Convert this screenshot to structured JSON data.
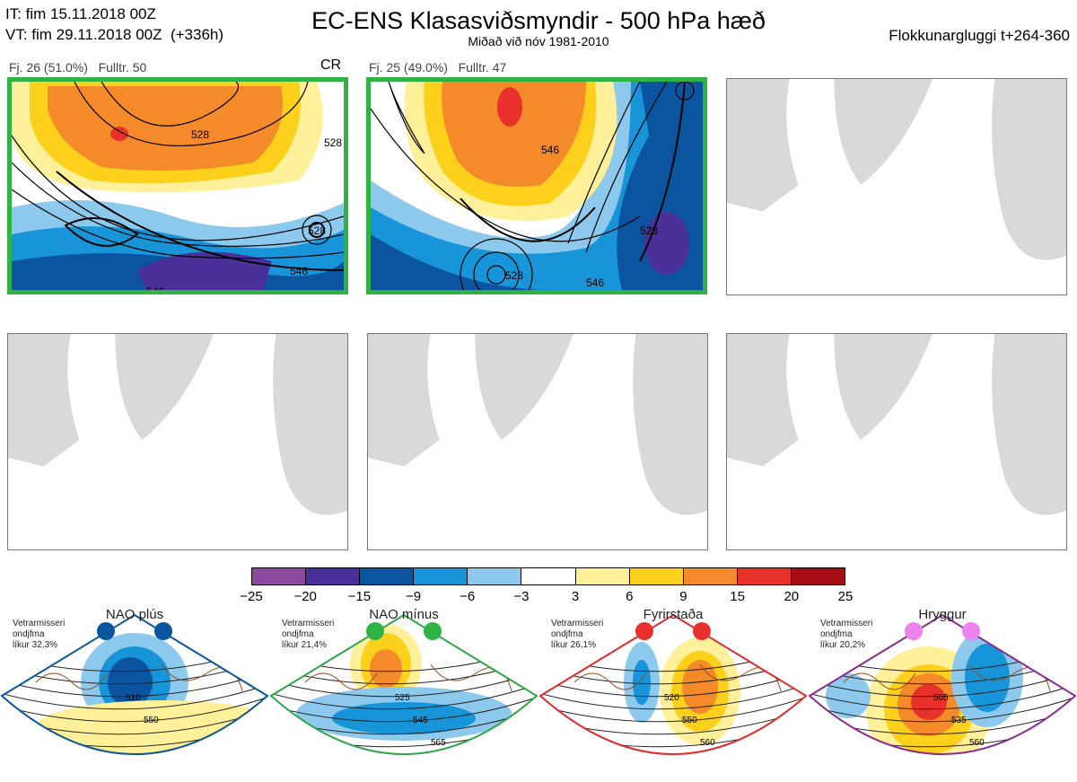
{
  "header": {
    "it": "IT: fim 15.11.2018 00Z",
    "vt": "VT: fim 29.11.2018 00Z  (+336h)",
    "title": "EC-ENS Klasasviðsmyndir - 500 hPa hæð",
    "subtitle": "Miðað við nóv 1981-2010",
    "right": "Flokkunargluggi t+264-360"
  },
  "panels": [
    {
      "label": "Fj. 26 (51.0%)   Fulltr. 50",
      "tag": "CR",
      "active": true,
      "contours": [
        "528",
        "546",
        "528",
        "528",
        "546"
      ]
    },
    {
      "label": "Fj. 25 (49.0%)   Fulltr. 47",
      "tag": "",
      "active": true,
      "contours": [
        "546",
        "528",
        "528",
        "546"
      ]
    },
    {
      "label": "",
      "tag": "",
      "active": false
    },
    {
      "label": "",
      "tag": "",
      "active": false
    },
    {
      "label": "",
      "tag": "",
      "active": false
    },
    {
      "label": "",
      "tag": "",
      "active": false
    }
  ],
  "colorbar": {
    "ticks": [
      "−25",
      "−20",
      "−15",
      "−9",
      "−6",
      "−3",
      "3",
      "6",
      "9",
      "15",
      "20",
      "25"
    ],
    "colors": [
      "#8b4a9c",
      "#4a3199",
      "#0b55a0",
      "#1795d8",
      "#8cc9ec",
      "#ffffff",
      "#fff099",
      "#fdd01c",
      "#f58a2a",
      "#e8312b",
      "#a50e15"
    ]
  },
  "regimes": [
    {
      "name": "NAO plús",
      "prob": "Vetrarmisseri\nondjfma\nlíkur 32,3%",
      "color": "#0b55a0",
      "dot": "#0b55a0",
      "labels": [
        "510",
        "550"
      ]
    },
    {
      "name": "NAO mínus",
      "prob": "Vetrarmisseri\nondjfma\nlíkur 21,4%",
      "color": "#2fa64a",
      "dot": "#2fb344",
      "labels": [
        "525",
        "545",
        "565"
      ]
    },
    {
      "name": "Fyrirstaða",
      "prob": "Vetrarmisseri\nondjfma\nlíkur 26,1%",
      "color": "#e02c2c",
      "dot": "#e8312b",
      "labels": [
        "520",
        "550",
        "560"
      ]
    },
    {
      "name": "Hryggur",
      "prob": "Vetrarmisseri\nondjfma\nlíkur 20,2%",
      "color": "#8b2b8f",
      "dot": "#ee82ee",
      "labels": [
        "505",
        "535",
        "560"
      ]
    }
  ]
}
